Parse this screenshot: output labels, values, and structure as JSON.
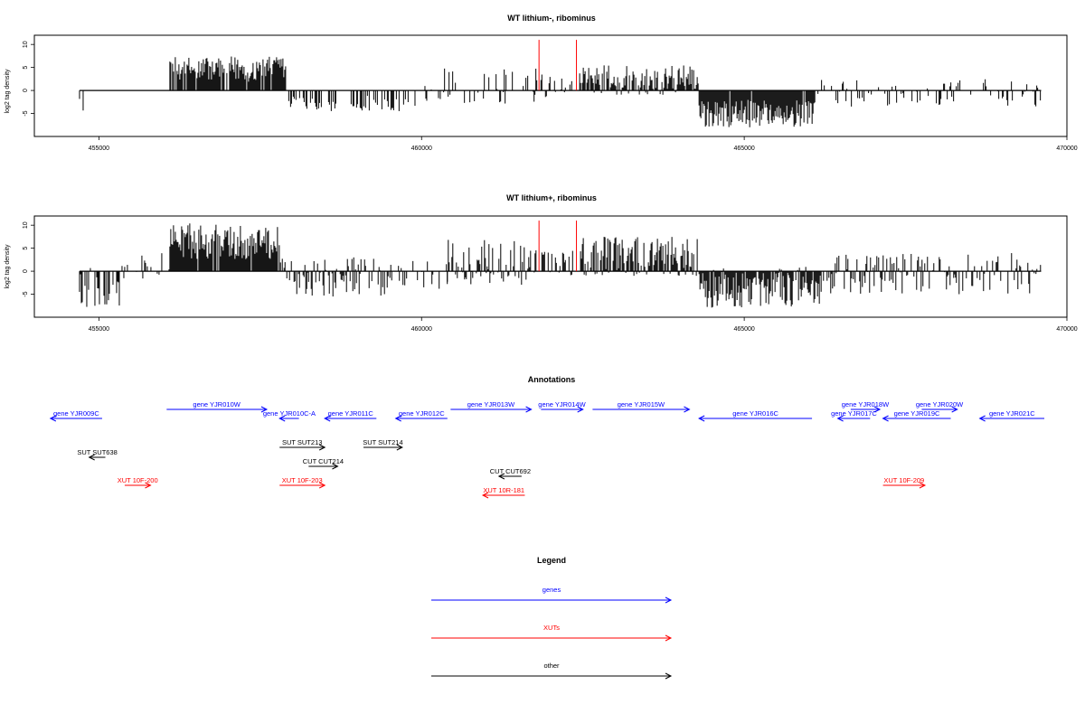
{
  "chart_data": [
    {
      "type": "bar",
      "title": "WT lithium-, ribominus",
      "xlabel": "",
      "ylabel": "log2 tag density",
      "xlim": [
        454000,
        470000
      ],
      "ylim": [
        -10,
        12
      ],
      "xticks": [
        455000,
        460000,
        465000,
        470000
      ],
      "yticks": [
        -5,
        0,
        5,
        10
      ],
      "baseline_range": [
        454700,
        469600
      ],
      "red_marks_x": [
        461820,
        462400
      ],
      "red_marks_y": 11,
      "regions": [
        {
          "from": 454700,
          "to": 454780,
          "lo": -7,
          "hi": 0,
          "density": 0.5
        },
        {
          "from": 456100,
          "to": 457900,
          "lo": 0,
          "hi": 7.5,
          "density": 0.9
        },
        {
          "from": 457900,
          "to": 459800,
          "lo": -4.5,
          "hi": 0,
          "density": 0.35
        },
        {
          "from": 459800,
          "to": 460300,
          "lo": -4,
          "hi": 1,
          "density": 0.25
        },
        {
          "from": 460300,
          "to": 461800,
          "lo": -3,
          "hi": 5.5,
          "density": 0.35
        },
        {
          "from": 461850,
          "to": 462350,
          "lo": -2,
          "hi": 3.5,
          "density": 0.45
        },
        {
          "from": 462450,
          "to": 464300,
          "lo": -1,
          "hi": 5.5,
          "density": 0.85
        },
        {
          "from": 464300,
          "to": 466100,
          "lo": -8,
          "hi": 0,
          "density": 0.95
        },
        {
          "from": 466100,
          "to": 469600,
          "lo": -3.5,
          "hi": 2.5,
          "density": 0.3
        }
      ]
    },
    {
      "type": "bar",
      "title": "WT lithium+, ribominus",
      "xlabel": "",
      "ylabel": "log2 tag density",
      "xlim": [
        454000,
        470000
      ],
      "ylim": [
        -10,
        12
      ],
      "xticks": [
        455000,
        460000,
        465000,
        470000
      ],
      "yticks": [
        -5,
        0,
        5,
        10
      ],
      "baseline_range": [
        454700,
        469600
      ],
      "red_marks_x": [
        461820,
        462400
      ],
      "red_marks_y": 11,
      "regions": [
        {
          "from": 454700,
          "to": 455400,
          "lo": -8,
          "hi": 2,
          "density": 0.5
        },
        {
          "from": 455400,
          "to": 456100,
          "lo": -2,
          "hi": 4,
          "density": 0.25
        },
        {
          "from": 456100,
          "to": 457800,
          "lo": 0,
          "hi": 10.5,
          "density": 0.95
        },
        {
          "from": 457800,
          "to": 459600,
          "lo": -5.5,
          "hi": 3,
          "density": 0.55
        },
        {
          "from": 459600,
          "to": 460400,
          "lo": -4,
          "hi": 2.5,
          "density": 0.35
        },
        {
          "from": 460400,
          "to": 461800,
          "lo": -3,
          "hi": 7,
          "density": 0.6
        },
        {
          "from": 461850,
          "to": 462350,
          "lo": -1.5,
          "hi": 4.5,
          "density": 0.5
        },
        {
          "from": 462450,
          "to": 464300,
          "lo": -1,
          "hi": 7.5,
          "density": 0.9
        },
        {
          "from": 464300,
          "to": 466200,
          "lo": -8,
          "hi": 1,
          "density": 0.95
        },
        {
          "from": 466200,
          "to": 469600,
          "lo": -5,
          "hi": 4,
          "density": 0.55
        }
      ]
    }
  ],
  "annotations": {
    "title": "Annotations",
    "xlim": [
      454000,
      470000
    ],
    "features": [
      {
        "label": "gene YJR009C",
        "start": 454250,
        "end": 455050,
        "strand": "-",
        "kind": "gene",
        "row": 1
      },
      {
        "label": "gene YJR010W",
        "start": 456050,
        "end": 457600,
        "strand": "+",
        "kind": "gene",
        "row": 0
      },
      {
        "label": "gene YJR010C-A",
        "start": 457800,
        "end": 458100,
        "strand": "-",
        "kind": "gene",
        "row": 1
      },
      {
        "label": "gene YJR011C",
        "start": 458500,
        "end": 459300,
        "strand": "-",
        "kind": "gene",
        "row": 1
      },
      {
        "label": "gene YJR012C",
        "start": 459600,
        "end": 460400,
        "strand": "-",
        "kind": "gene",
        "row": 1
      },
      {
        "label": "gene YJR013W",
        "start": 460450,
        "end": 461700,
        "strand": "+",
        "kind": "gene",
        "row": 0
      },
      {
        "label": "gene YJR014W",
        "start": 461850,
        "end": 462500,
        "strand": "+",
        "kind": "gene",
        "row": 0
      },
      {
        "label": "gene YJR015W",
        "start": 462650,
        "end": 464150,
        "strand": "+",
        "kind": "gene",
        "row": 0
      },
      {
        "label": "gene YJR016C",
        "start": 464300,
        "end": 466050,
        "strand": "-",
        "kind": "gene",
        "row": 1
      },
      {
        "label": "gene YJR017C",
        "start": 466450,
        "end": 466950,
        "strand": "-",
        "kind": "gene",
        "row": 1
      },
      {
        "label": "gene YJR018W",
        "start": 466650,
        "end": 467100,
        "strand": "+",
        "kind": "gene",
        "row": 0
      },
      {
        "label": "gene YJR019C",
        "start": 467150,
        "end": 468200,
        "strand": "-",
        "kind": "gene",
        "row": 1
      },
      {
        "label": "gene YJR020W",
        "start": 467750,
        "end": 468300,
        "strand": "+",
        "kind": "gene",
        "row": 0
      },
      {
        "label": "gene YJR021C",
        "start": 468650,
        "end": 469650,
        "strand": "-",
        "kind": "gene",
        "row": 1
      },
      {
        "label": "SUT SUT638",
        "start": 454850,
        "end": 455100,
        "strand": "-",
        "kind": "other",
        "row": 2
      },
      {
        "label": "SUT SUT213",
        "start": 457800,
        "end": 458500,
        "strand": "+",
        "kind": "other",
        "row": 3
      },
      {
        "label": "SUT SUT214",
        "start": 459100,
        "end": 459700,
        "strand": "+",
        "kind": "other",
        "row": 3
      },
      {
        "label": "CUT CUT214",
        "start": 458250,
        "end": 458700,
        "strand": "+",
        "kind": "other",
        "row": 4
      },
      {
        "label": "CUT CUT692",
        "start": 461200,
        "end": 461550,
        "strand": "-",
        "kind": "other",
        "row": 5
      },
      {
        "label": "XUT 10F-200",
        "start": 455400,
        "end": 455800,
        "strand": "+",
        "kind": "xut",
        "row": 6
      },
      {
        "label": "XUT 10F-203",
        "start": 457800,
        "end": 458500,
        "strand": "+",
        "kind": "xut",
        "row": 6
      },
      {
        "label": "XUT 10R-181",
        "start": 460950,
        "end": 461600,
        "strand": "-",
        "kind": "xut",
        "row": 7
      },
      {
        "label": "XUT 10F-209",
        "start": 467150,
        "end": 467800,
        "strand": "+",
        "kind": "xut",
        "row": 6
      }
    ]
  },
  "legend": {
    "title": "Legend",
    "items": [
      {
        "label": "genes",
        "kind": "gene"
      },
      {
        "label": "XUTs",
        "kind": "xut"
      },
      {
        "label": "other",
        "kind": "other"
      }
    ]
  },
  "colors": {
    "gene": "#0000ff",
    "xut": "#ff0000",
    "other": "#000000",
    "signal": "#000000",
    "marker": "#ff0000"
  }
}
